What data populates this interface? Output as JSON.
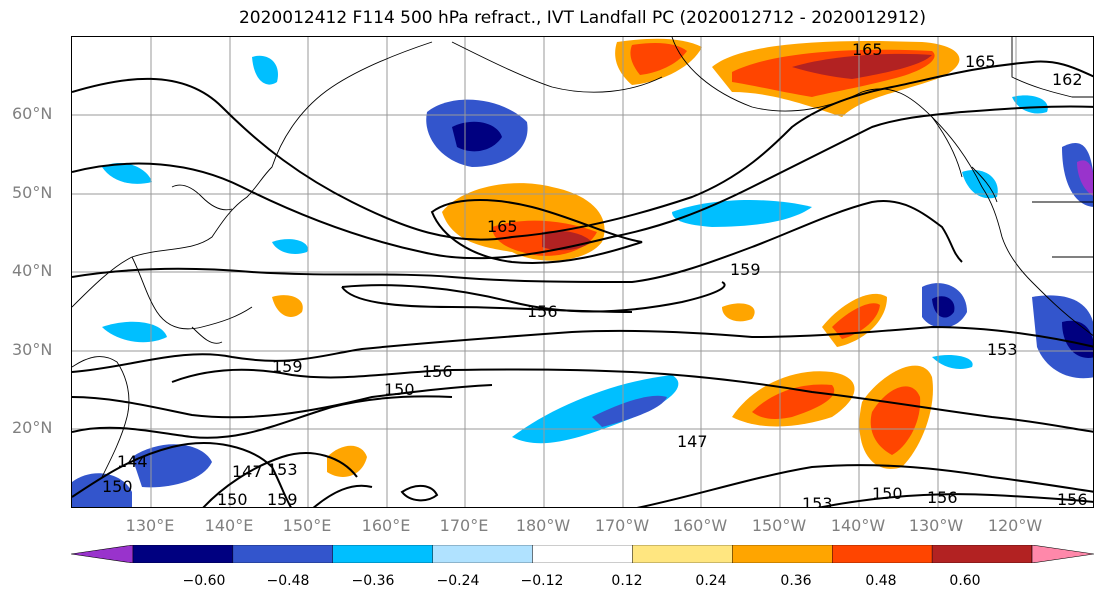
{
  "title": "2020012412 F114 500 hPa refract., IVT Landfall PC (2020012712 - 2020012912)",
  "lat_labels": [
    "60°N",
    "50°N",
    "40°N",
    "30°N",
    "20°N"
  ],
  "lon_labels": [
    "130°E",
    "140°E",
    "150°E",
    "160°E",
    "170°E",
    "180°W",
    "170°W",
    "160°W",
    "150°W",
    "140°W",
    "130°W",
    "120°W"
  ],
  "colorbar": {
    "ticks": [
      "−0.60",
      "−0.48",
      "−0.36",
      "−0.24",
      "−0.12",
      "0.12",
      "0.24",
      "0.36",
      "0.48",
      "0.60"
    ],
    "colors": [
      "#9933cc",
      "#000080",
      "#3355cc",
      "#00bfff",
      "#b0e2ff",
      "#ffffff",
      "#ffe680",
      "#ffa500",
      "#ff4500",
      "#b22222",
      "#ff88aa"
    ]
  },
  "contour_labels": [
    "165",
    "165",
    "162",
    "165",
    "159",
    "156",
    "159",
    "156",
    "150",
    "153",
    "147",
    "150",
    "156",
    "156",
    "153",
    "147",
    "150",
    "153",
    "159",
    "150",
    "144"
  ]
}
